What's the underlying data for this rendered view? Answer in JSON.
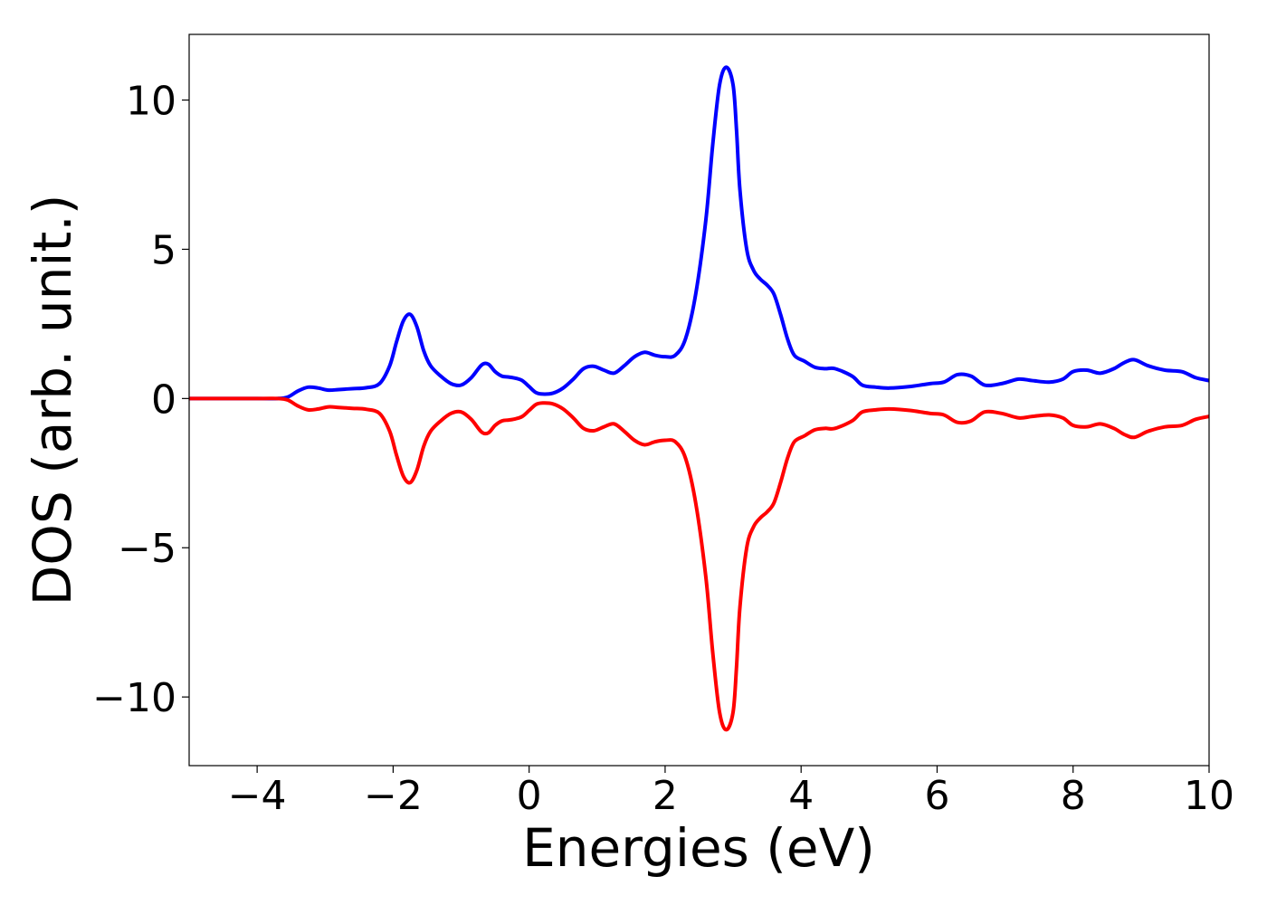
{
  "chart_data": {
    "type": "line",
    "title": "",
    "xlabel": "Energies (eV)",
    "ylabel": "DOS (arb. unit.)",
    "xlim": [
      -5,
      10
    ],
    "ylim": [
      -12.3,
      12.2
    ],
    "xticks": [
      -4,
      -2,
      0,
      2,
      4,
      6,
      8,
      10
    ],
    "xtick_labels": [
      "−4",
      "−2",
      "0",
      "2",
      "4",
      "6",
      "8",
      "10"
    ],
    "yticks": [
      10,
      5,
      0,
      -5,
      -10
    ],
    "ytick_labels": [
      "10",
      "5",
      "0",
      "−5",
      "−10"
    ],
    "grid": false,
    "legend": "none",
    "series": [
      {
        "color": "#0000ff",
        "x": [
          -5.0,
          -4.0,
          -3.7,
          -3.55,
          -3.4,
          -3.25,
          -3.1,
          -2.95,
          -2.8,
          -2.6,
          -2.4,
          -2.2,
          -2.05,
          -1.95,
          -1.85,
          -1.75,
          -1.65,
          -1.55,
          -1.45,
          -1.3,
          -1.15,
          -1.0,
          -0.85,
          -0.7,
          -0.6,
          -0.5,
          -0.4,
          -0.3,
          -0.2,
          -0.1,
          0.0,
          0.1,
          0.2,
          0.35,
          0.5,
          0.65,
          0.8,
          0.95,
          1.1,
          1.25,
          1.4,
          1.55,
          1.7,
          1.85,
          2.0,
          2.15,
          2.3,
          2.45,
          2.6,
          2.7,
          2.8,
          2.9,
          3.0,
          3.05,
          3.1,
          3.2,
          3.3,
          3.4,
          3.5,
          3.6,
          3.7,
          3.8,
          3.9,
          4.05,
          4.2,
          4.35,
          4.5,
          4.75,
          4.9,
          5.1,
          5.3,
          5.6,
          5.9,
          6.1,
          6.3,
          6.5,
          6.7,
          6.95,
          7.2,
          7.4,
          7.65,
          7.85,
          8.0,
          8.2,
          8.4,
          8.6,
          8.75,
          8.9,
          9.1,
          9.35,
          9.6,
          9.8,
          10.0
        ],
        "y": [
          0.0,
          0.0,
          0.0,
          0.05,
          0.25,
          0.38,
          0.35,
          0.28,
          0.3,
          0.33,
          0.36,
          0.5,
          1.1,
          1.9,
          2.6,
          2.82,
          2.4,
          1.6,
          1.1,
          0.75,
          0.5,
          0.45,
          0.7,
          1.12,
          1.15,
          0.9,
          0.75,
          0.72,
          0.68,
          0.6,
          0.4,
          0.2,
          0.15,
          0.18,
          0.35,
          0.65,
          1.0,
          1.08,
          0.95,
          0.85,
          1.1,
          1.4,
          1.55,
          1.45,
          1.4,
          1.45,
          2.0,
          3.5,
          6.0,
          8.5,
          10.5,
          11.1,
          10.5,
          9.0,
          7.0,
          5.0,
          4.3,
          4.0,
          3.8,
          3.5,
          2.8,
          2.0,
          1.45,
          1.25,
          1.05,
          1.0,
          1.0,
          0.75,
          0.45,
          0.38,
          0.35,
          0.4,
          0.5,
          0.55,
          0.8,
          0.75,
          0.45,
          0.5,
          0.65,
          0.6,
          0.55,
          0.65,
          0.9,
          0.95,
          0.85,
          1.0,
          1.2,
          1.3,
          1.1,
          0.95,
          0.9,
          0.7,
          0.6
        ]
      },
      {
        "color": "#ff0000",
        "x": [
          -5.0,
          -4.0,
          -3.7,
          -3.55,
          -3.4,
          -3.25,
          -3.1,
          -2.95,
          -2.8,
          -2.6,
          -2.4,
          -2.2,
          -2.05,
          -1.95,
          -1.85,
          -1.75,
          -1.65,
          -1.55,
          -1.45,
          -1.3,
          -1.15,
          -1.0,
          -0.85,
          -0.7,
          -0.6,
          -0.5,
          -0.4,
          -0.3,
          -0.2,
          -0.1,
          0.0,
          0.1,
          0.2,
          0.35,
          0.5,
          0.65,
          0.8,
          0.95,
          1.1,
          1.25,
          1.4,
          1.55,
          1.7,
          1.85,
          2.0,
          2.15,
          2.3,
          2.45,
          2.6,
          2.7,
          2.8,
          2.9,
          3.0,
          3.05,
          3.1,
          3.2,
          3.3,
          3.4,
          3.5,
          3.6,
          3.7,
          3.8,
          3.9,
          4.05,
          4.2,
          4.35,
          4.5,
          4.75,
          4.9,
          5.1,
          5.3,
          5.6,
          5.9,
          6.1,
          6.3,
          6.5,
          6.7,
          6.95,
          7.2,
          7.4,
          7.65,
          7.85,
          8.0,
          8.2,
          8.4,
          8.6,
          8.75,
          8.9,
          9.1,
          9.35,
          9.6,
          9.8,
          10.0
        ],
        "y": [
          0.0,
          0.0,
          0.0,
          -0.05,
          -0.25,
          -0.38,
          -0.35,
          -0.28,
          -0.3,
          -0.33,
          -0.36,
          -0.5,
          -1.1,
          -1.9,
          -2.6,
          -2.82,
          -2.4,
          -1.6,
          -1.1,
          -0.75,
          -0.5,
          -0.45,
          -0.7,
          -1.12,
          -1.15,
          -0.9,
          -0.75,
          -0.72,
          -0.68,
          -0.6,
          -0.4,
          -0.2,
          -0.15,
          -0.18,
          -0.35,
          -0.65,
          -1.0,
          -1.08,
          -0.95,
          -0.85,
          -1.1,
          -1.4,
          -1.55,
          -1.45,
          -1.4,
          -1.45,
          -2.0,
          -3.5,
          -6.0,
          -8.5,
          -10.5,
          -11.1,
          -10.5,
          -9.0,
          -7.0,
          -5.0,
          -4.3,
          -4.0,
          -3.8,
          -3.5,
          -2.8,
          -2.0,
          -1.45,
          -1.25,
          -1.05,
          -1.0,
          -1.0,
          -0.75,
          -0.45,
          -0.38,
          -0.35,
          -0.4,
          -0.5,
          -0.55,
          -0.8,
          -0.75,
          -0.45,
          -0.5,
          -0.65,
          -0.6,
          -0.55,
          -0.65,
          -0.9,
          -0.95,
          -0.85,
          -1.0,
          -1.2,
          -1.3,
          -1.1,
          -0.95,
          -0.9,
          -0.7,
          -0.6
        ]
      }
    ]
  }
}
